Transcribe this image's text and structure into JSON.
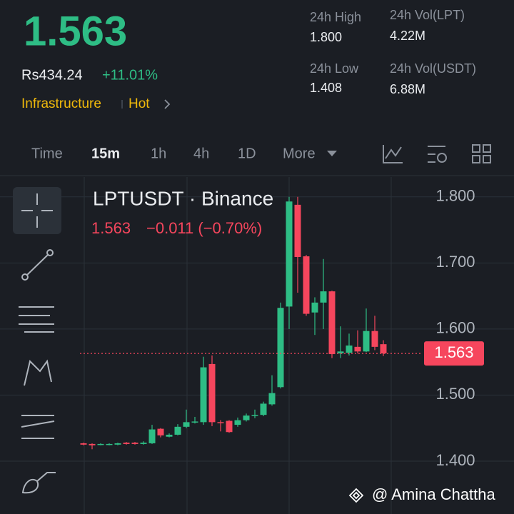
{
  "header": {
    "price": "1.563",
    "fiat_price": "Rs434.24",
    "change": "+11.01%",
    "tags": [
      "Infrastructure",
      "Hot"
    ],
    "stats": [
      {
        "label": "24h High",
        "value": "1.800"
      },
      {
        "label": "24h Vol(LPT)",
        "value": "4.22M"
      },
      {
        "label": "24h Low",
        "value": "1.408"
      },
      {
        "label": "24h Vol(USDT)",
        "value": "6.88M"
      }
    ]
  },
  "tabs": [
    "Time",
    "15m",
    "1h",
    "4h",
    "1D",
    "More"
  ],
  "chart_data": {
    "type": "candlestick",
    "title": "LPTUSDT · Binance",
    "last_price": 1.563,
    "last_change": "−0.011 (−0.70%)",
    "up_color": "#2ebd85",
    "down_color": "#f6465d",
    "open": [
      1.427,
      1.426,
      1.425,
      1.425,
      1.425,
      1.428,
      1.428,
      1.426,
      1.427,
      1.449,
      1.437,
      1.44,
      1.452,
      1.459,
      1.459,
      1.547,
      1.459,
      1.461,
      1.455,
      1.462,
      1.469,
      1.47,
      1.486,
      1.512,
      1.634,
      1.788,
      1.71,
      1.625,
      1.64,
      1.657,
      1.563,
      1.564,
      1.573,
      1.566,
      1.597,
      1.577
    ],
    "high": [
      1.428,
      1.427,
      1.427,
      1.427,
      1.428,
      1.429,
      1.429,
      1.43,
      1.455,
      1.45,
      1.442,
      1.456,
      1.478,
      1.467,
      1.558,
      1.56,
      1.462,
      1.462,
      1.466,
      1.472,
      1.478,
      1.49,
      1.53,
      1.64,
      1.8,
      1.8,
      1.712,
      1.648,
      1.706,
      1.658,
      1.604,
      1.593,
      1.598,
      1.631,
      1.62,
      1.583
    ],
    "low": [
      1.424,
      1.418,
      1.424,
      1.424,
      1.424,
      1.425,
      1.425,
      1.425,
      1.426,
      1.436,
      1.436,
      1.439,
      1.45,
      1.457,
      1.455,
      1.453,
      1.445,
      1.443,
      1.452,
      1.46,
      1.465,
      1.468,
      1.484,
      1.51,
      1.6,
      1.655,
      1.62,
      1.591,
      1.6,
      1.556,
      1.556,
      1.56,
      1.563,
      1.565,
      1.568,
      1.559
    ],
    "close": [
      1.425,
      1.424,
      1.426,
      1.426,
      1.427,
      1.426,
      1.426,
      1.428,
      1.448,
      1.439,
      1.44,
      1.452,
      1.459,
      1.46,
      1.542,
      1.459,
      1.458,
      1.444,
      1.462,
      1.469,
      1.47,
      1.487,
      1.503,
      1.632,
      1.793,
      1.709,
      1.623,
      1.64,
      1.657,
      1.562,
      1.566,
      1.575,
      1.566,
      1.597,
      1.573,
      1.563
    ],
    "ylim": [
      1.32,
      1.83
    ],
    "yticks": [
      {
        "value": 1.4,
        "label": "1.400"
      },
      {
        "value": 1.5,
        "label": "1.500"
      },
      {
        "value": 1.6,
        "label": "1.600"
      },
      {
        "value": 1.7,
        "label": "1.700"
      },
      {
        "value": 1.8,
        "label": "1.800"
      }
    ],
    "grid": true
  },
  "watermark": "@ Amina Chattha"
}
